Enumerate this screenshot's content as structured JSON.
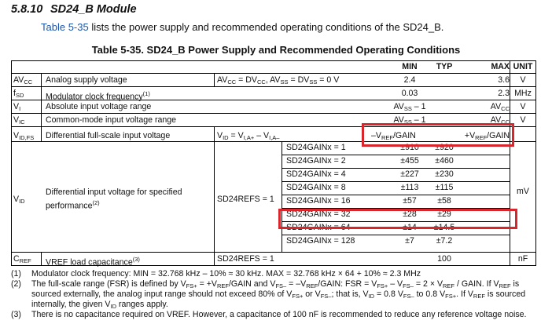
{
  "section": {
    "number": "5.8.10",
    "title": "SD24_B Module"
  },
  "intro": {
    "link": "Table 5-35",
    "text": " lists the power supply and recommended operating conditions of the SD24_B."
  },
  "table_title": "Table 5-35. SD24_B Power Supply and Recommended Operating Conditions",
  "header": {
    "min": "MIN",
    "typ": "TYP",
    "max": "MAX",
    "unit": "UNIT"
  },
  "rows": {
    "avcc": {
      "sym": "AV",
      "sym_sub": "CC",
      "param": "Analog supply voltage",
      "cond": "AV",
      "cond_html": "AV<sub>CC</sub> = DV<sub>CC</sub>, AV<sub>SS</sub> = DV<sub>SS</sub> = 0 V",
      "min": "2.4",
      "max": "3.6",
      "unit": "V"
    },
    "fsd": {
      "sym": "f",
      "sym_sub": "SD",
      "param": "Modulator clock frequency",
      "param_sup": "(1)",
      "min": "0.03",
      "max": "2.3",
      "unit": "MHz"
    },
    "vi": {
      "sym": "V",
      "sym_sub": "I",
      "param": "Absolute input voltage range",
      "min": "AV",
      "min_sub": "SS",
      "min_suffix": " – 1",
      "max": "AV",
      "max_sub": "CC",
      "unit": "V"
    },
    "vic": {
      "sym": "V",
      "sym_sub": "IC",
      "param": "Common-mode input voltage range",
      "min": "AV",
      "min_sub": "SS",
      "min_suffix": " – 1",
      "max": "AV",
      "max_sub": "CC",
      "unit": "V"
    },
    "vidfs": {
      "sym": "V",
      "sym_sub": "ID,FS",
      "param": "Differential full-scale input voltage",
      "cond_html": "V<sub>ID</sub> = V<sub>I,A+</sub> – V<sub>I,A–</sub>",
      "min_html": "–V<sub>REF</sub>/GAIN",
      "max_html": "+V<sub>REF</sub>/GAIN"
    },
    "vid": {
      "sym": "V",
      "sym_sub": "ID",
      "param": "Differential input voltage for specified performance",
      "param_sup": "(2)",
      "cond": "SD24REFS = 1",
      "unit": "mV",
      "gains": [
        {
          "label": "SD24GAINx = 1",
          "min": "±910",
          "typ": "±920"
        },
        {
          "label": "SD24GAINx = 2",
          "min": "±455",
          "typ": "±460"
        },
        {
          "label": "SD24GAINx = 4",
          "min": "±227",
          "typ": "±230"
        },
        {
          "label": "SD24GAINx = 8",
          "min": "±113",
          "typ": "±115"
        },
        {
          "label": "SD24GAINx = 16",
          "min": "±57",
          "typ": "±58"
        },
        {
          "label": "SD24GAINx = 32",
          "min": "±28",
          "typ": "±29"
        },
        {
          "label": "SD24GAINx = 64",
          "min": "±14",
          "typ": "±14.5"
        },
        {
          "label": "SD24GAINx = 128",
          "min": "±7",
          "typ": "±7.2"
        }
      ]
    },
    "cref": {
      "sym": "C",
      "sym_sub": "REF",
      "param": "VREF load capacitance",
      "param_sup": "(3)",
      "cond": "SD24REFS = 1",
      "typ": "100",
      "unit": "nF"
    }
  },
  "notes": [
    {
      "n": "(1)",
      "html": "Modulator clock frequency: MIN = 32.768 kHz – 10% ≈ 30 kHz. MAX = 32.768 kHz × 64 + 10% ≈ 2.3 MHz"
    },
    {
      "n": "(2)",
      "html": "The full-scale range (FSR) is defined by V<sub>FS+</sub> = +V<sub>REF</sub>/GAIN and V<sub>FS–</sub> = –V<sub>REF</sub>/GAIN: FSR = V<sub>FS+</sub> – V<sub>FS–</sub> = 2 × V<sub>REF</sub> / GAIN. If V<sub>REF</sub> is sourced externally, the analog input range should not exceed 80% of V<sub>FS+</sub> or V<sub>FS–</sub>; that is, V<sub>ID</sub> = 0.8 V<sub>FS–</sub> to 0.8 V<sub>FS+</sub>. If V<sub>REF</sub> is sourced internally, the given V<sub>ID</sub> ranges apply."
    },
    {
      "n": "(3)",
      "html": "There is no capacitance required on VREF. However, a capacitance of 100 nF is recommended to reduce any reference voltage noise."
    }
  ],
  "highlight_color": "#d9262c"
}
